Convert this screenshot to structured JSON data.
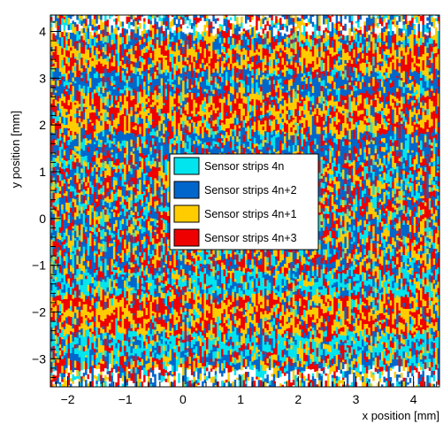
{
  "chart_data": {
    "type": "heatmap",
    "title": "",
    "xlabel": "x position [mm]",
    "ylabel": "y position [mm]",
    "xlim": [
      -2.3,
      4.45
    ],
    "ylim": [
      -3.6,
      4.35
    ],
    "x_ticks": [
      -2,
      -1,
      0,
      1,
      2,
      3,
      4
    ],
    "y_ticks": [
      -3,
      -2,
      -1,
      0,
      1,
      2,
      3,
      4
    ],
    "x_tick_labels": [
      "−2",
      "−1",
      "0",
      "1",
      "2",
      "3",
      "4"
    ],
    "y_tick_labels": [
      "−3",
      "−2",
      "−1",
      "0",
      "1",
      "2",
      "3",
      "4"
    ],
    "grid": false,
    "legend_position": "center",
    "series": [
      {
        "name": "Sensor strips 4n",
        "color": "#00e5ee",
        "strip_index_mod4": 0
      },
      {
        "name": "Sensor strips 4n+2",
        "color": "#0066cc",
        "strip_index_mod4": 2
      },
      {
        "name": "Sensor strips 4n+1",
        "color": "#ffcc00",
        "strip_index_mod4": 1
      },
      {
        "name": "Sensor strips 4n+3",
        "color": "#ee0000",
        "strip_index_mod4": 3
      }
    ],
    "bands_y": [
      {
        "from": -3.6,
        "to": -3.0,
        "dominant": "mixed"
      },
      {
        "from": -3.0,
        "to": -2.5,
        "dominant": "cyan"
      },
      {
        "from": -2.5,
        "to": -1.7,
        "dominant": "yellow-red"
      },
      {
        "from": -1.7,
        "to": -1.2,
        "dominant": "cyan"
      },
      {
        "from": -1.2,
        "to": 1.3,
        "dominant": "mixed"
      },
      {
        "from": 1.3,
        "to": 1.8,
        "dominant": "blue"
      },
      {
        "from": 1.8,
        "to": 2.6,
        "dominant": "yellow-red"
      },
      {
        "from": 2.6,
        "to": 3.1,
        "dominant": "blue"
      },
      {
        "from": 3.1,
        "to": 3.6,
        "dominant": "yellow-red"
      },
      {
        "from": 3.6,
        "to": 4.35,
        "dominant": "mixed"
      }
    ]
  }
}
